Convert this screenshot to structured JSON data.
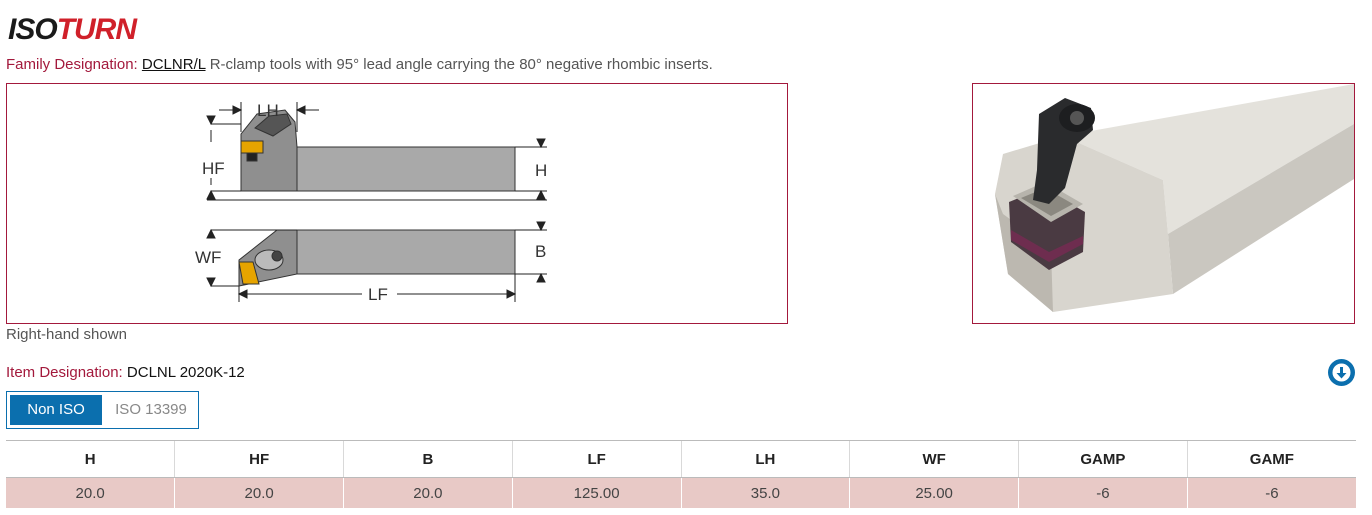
{
  "logo": {
    "part1": "ISO",
    "part2": "TURN"
  },
  "family": {
    "label": "Family Designation:",
    "code": "DCLNR/L",
    "description": "R-clamp tools with 95° lead angle carrying the 80° negative rhombic inserts."
  },
  "diagram": {
    "labels": {
      "lh": "LH",
      "hf": "HF",
      "h": "H",
      "wf": "WF",
      "b": "B",
      "lf": "LF"
    }
  },
  "caption": "Right-hand shown",
  "item": {
    "label": "Item Designation:",
    "value": "DCLNL 2020K-12"
  },
  "download": {
    "icon": "download-icon"
  },
  "tabs": [
    {
      "label": "Non ISO",
      "active": true
    },
    {
      "label": "ISO 13399",
      "active": false
    }
  ],
  "table": {
    "headers": [
      "H",
      "HF",
      "B",
      "LF",
      "LH",
      "WF",
      "GAMP",
      "GAMF"
    ],
    "rows": [
      [
        "20.0",
        "20.0",
        "20.0",
        "125.00",
        "35.0",
        "25.00",
        "-6",
        "-6"
      ]
    ]
  },
  "colors": {
    "accent": "#a3193c",
    "primary": "#0b6fae",
    "row": "#e8c9c6",
    "logo_red": "#d0202a"
  }
}
